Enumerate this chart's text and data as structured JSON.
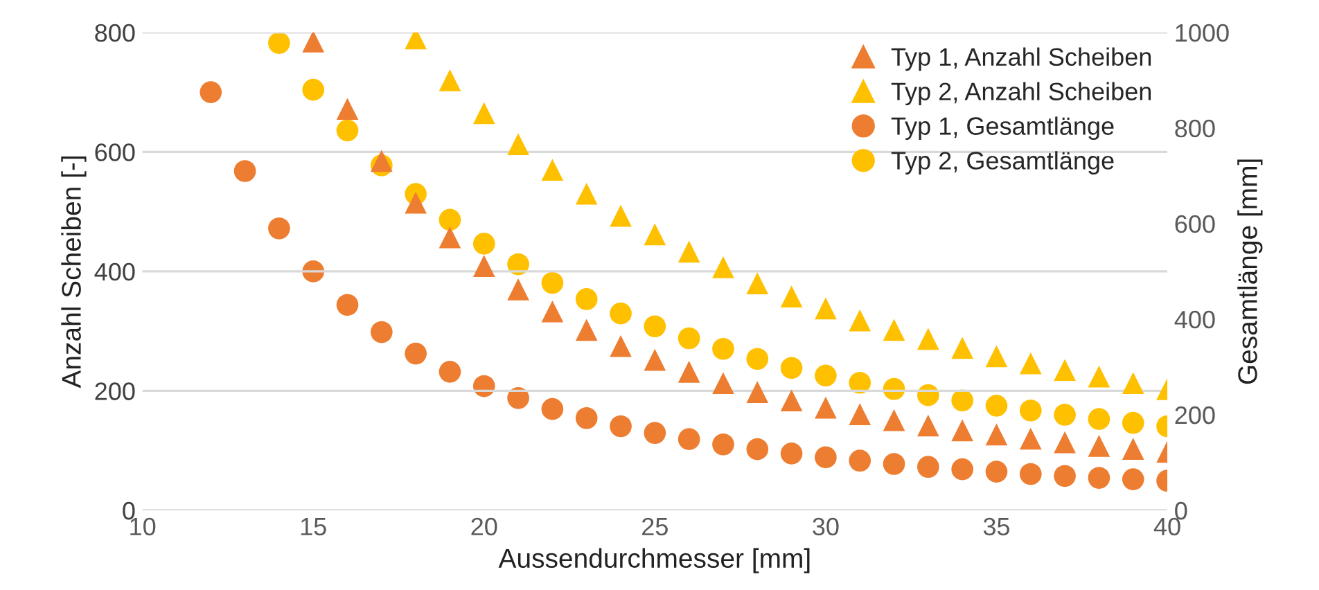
{
  "chart_data": {
    "type": "scatter",
    "xlabel": "Aussendurchmesser [mm]",
    "ylabel": "Anzahl Scheiben [-]",
    "y2label": "Gesamtlänge [mm]",
    "xlim": [
      10,
      40
    ],
    "xticks": [
      10,
      15,
      20,
      25,
      30,
      35,
      40
    ],
    "ylim": [
      0,
      800
    ],
    "yticks": [
      0,
      200,
      400,
      600,
      800
    ],
    "y2lim": [
      0,
      1000
    ],
    "y2ticks": [
      0,
      200,
      400,
      600,
      800,
      1000
    ],
    "grid": "y",
    "legend": "top right",
    "series": [
      {
        "name": "Typ 1, Anzahl Scheiben",
        "color": "#ed7d31",
        "marker": "triangle",
        "x": [
          15,
          16,
          17,
          18,
          19,
          20,
          21,
          22,
          23,
          24,
          25,
          26,
          27,
          28,
          29,
          30,
          31,
          32,
          33,
          34,
          35,
          36,
          37,
          38,
          39,
          40
        ],
        "values": [
          785,
          672,
          585,
          515,
          457,
          409,
          370,
          333,
          302,
          275,
          252,
          232,
          213,
          198,
          184,
          172,
          161,
          151,
          142,
          134,
          127,
          120,
          114,
          108,
          103,
          98
        ]
      },
      {
        "name": "Typ 2, Anzahl Scheiben",
        "color": "#ffc000",
        "marker": "triangle",
        "x": [
          18,
          19,
          20,
          21,
          22,
          23,
          24,
          25,
          26,
          27,
          28,
          29,
          30,
          31,
          32,
          33,
          34,
          35,
          36,
          37,
          38,
          39,
          40
        ],
        "values": [
          790,
          720,
          665,
          613,
          570,
          530,
          493,
          462,
          433,
          407,
          380,
          358,
          338,
          318,
          302,
          287,
          272,
          258,
          246,
          235,
          224,
          213,
          203
        ]
      },
      {
        "name": "Typ 1, Gesamtlänge",
        "color": "#ed7d31",
        "marker": "circle",
        "axis": "y2",
        "x": [
          12,
          13,
          14,
          15,
          16,
          17,
          18,
          19,
          20,
          21,
          22,
          23,
          24,
          25,
          26,
          27,
          28,
          29,
          30,
          31,
          32,
          33,
          34,
          35,
          36,
          37,
          38,
          39,
          40
        ],
        "values": [
          875,
          710,
          590,
          500,
          430,
          373,
          328,
          290,
          260,
          235,
          212,
          193,
          176,
          162,
          149,
          138,
          128,
          119,
          111,
          104,
          97,
          91,
          86,
          81,
          76,
          72,
          68,
          65,
          62
        ]
      },
      {
        "name": "Typ 2, Gesamtlänge",
        "color": "#ffc000",
        "marker": "circle",
        "axis": "y2",
        "x": [
          14,
          15,
          16,
          17,
          18,
          19,
          20,
          21,
          22,
          23,
          24,
          25,
          26,
          27,
          28,
          29,
          30,
          31,
          32,
          33,
          34,
          35,
          36,
          37,
          38,
          39,
          40
        ],
        "values": [
          978,
          880,
          795,
          722,
          662,
          608,
          558,
          515,
          476,
          442,
          412,
          385,
          360,
          338,
          317,
          298,
          282,
          267,
          254,
          241,
          230,
          219,
          209,
          200,
          191,
          183,
          176
        ]
      }
    ]
  }
}
